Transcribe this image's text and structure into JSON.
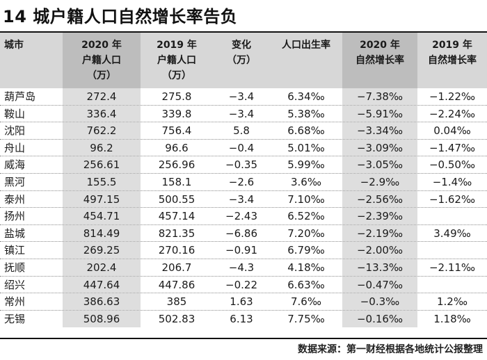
{
  "title": "14 城户籍人口自然增长率告负",
  "headers": [
    [
      "城市"
    ],
    [
      "2020 年",
      "户籍人口",
      "（万）"
    ],
    [
      "2019 年",
      "户籍人口",
      "（万）"
    ],
    [
      "变化",
      "（万）"
    ],
    [
      "人口出生率"
    ],
    [
      "2020 年",
      "自然增长率"
    ],
    [
      "2019 年",
      "自然增长率"
    ]
  ],
  "rows": [
    [
      "葫芦岛",
      "272.4",
      "275.8",
      "−3.4",
      "6.34‰",
      "−7.38‰",
      "−1.22‰"
    ],
    [
      "鞍山",
      "336.4",
      "339.8",
      "−3.4",
      "5.38‰",
      "−5.91‰",
      "−2.24‰"
    ],
    [
      "沈阳",
      "762.2",
      "756.4",
      "5.8",
      "6.68‰",
      "−3.34‰",
      "0.04‰"
    ],
    [
      "舟山",
      "96.2",
      "96.6",
      "−0.4",
      "5.01‰",
      "−3.09‰",
      "−1.47‰"
    ],
    [
      "威海",
      "256.61",
      "256.96",
      "−0.35",
      "5.99‰",
      "−3.05‰",
      "−0.50‰"
    ],
    [
      "黑河",
      "155.5",
      "158.1",
      "−2.6",
      "3.6‰",
      "−2.9‰",
      "−1.4‰"
    ],
    [
      "泰州",
      "497.15",
      "500.55",
      "−3.4",
      "7.10‰",
      "−2.56‰",
      "−1.62‰"
    ],
    [
      "扬州",
      "454.71",
      "457.14",
      "−2.43",
      "6.52‰",
      "−2.39‰",
      ""
    ],
    [
      "盐城",
      "814.49",
      "821.35",
      "−6.86",
      "7.20‰",
      "−2.19‰",
      "3.49‰"
    ],
    [
      "镇江",
      "269.25",
      "270.16",
      "−0.91",
      "6.79‰",
      "−2.00‰",
      ""
    ],
    [
      "抚顺",
      "202.4",
      "206.7",
      "−4.3",
      "4.18‰",
      "−13.3‰",
      "−2.11‰"
    ],
    [
      "绍兴",
      "447.64",
      "447.86",
      "−0.22",
      "6.63‰",
      "−0.47‰",
      ""
    ],
    [
      "常州",
      "386.63",
      "385",
      "1.63",
      "7.6‰",
      "−0.3‰",
      "1.2‰"
    ],
    [
      "无锡",
      "508.96",
      "502.83",
      "6.13",
      "7.75‰",
      "−0.16‰",
      "1.18‰"
    ]
  ],
  "source": "数据来源：第一财经根据各地统计公报整理"
}
